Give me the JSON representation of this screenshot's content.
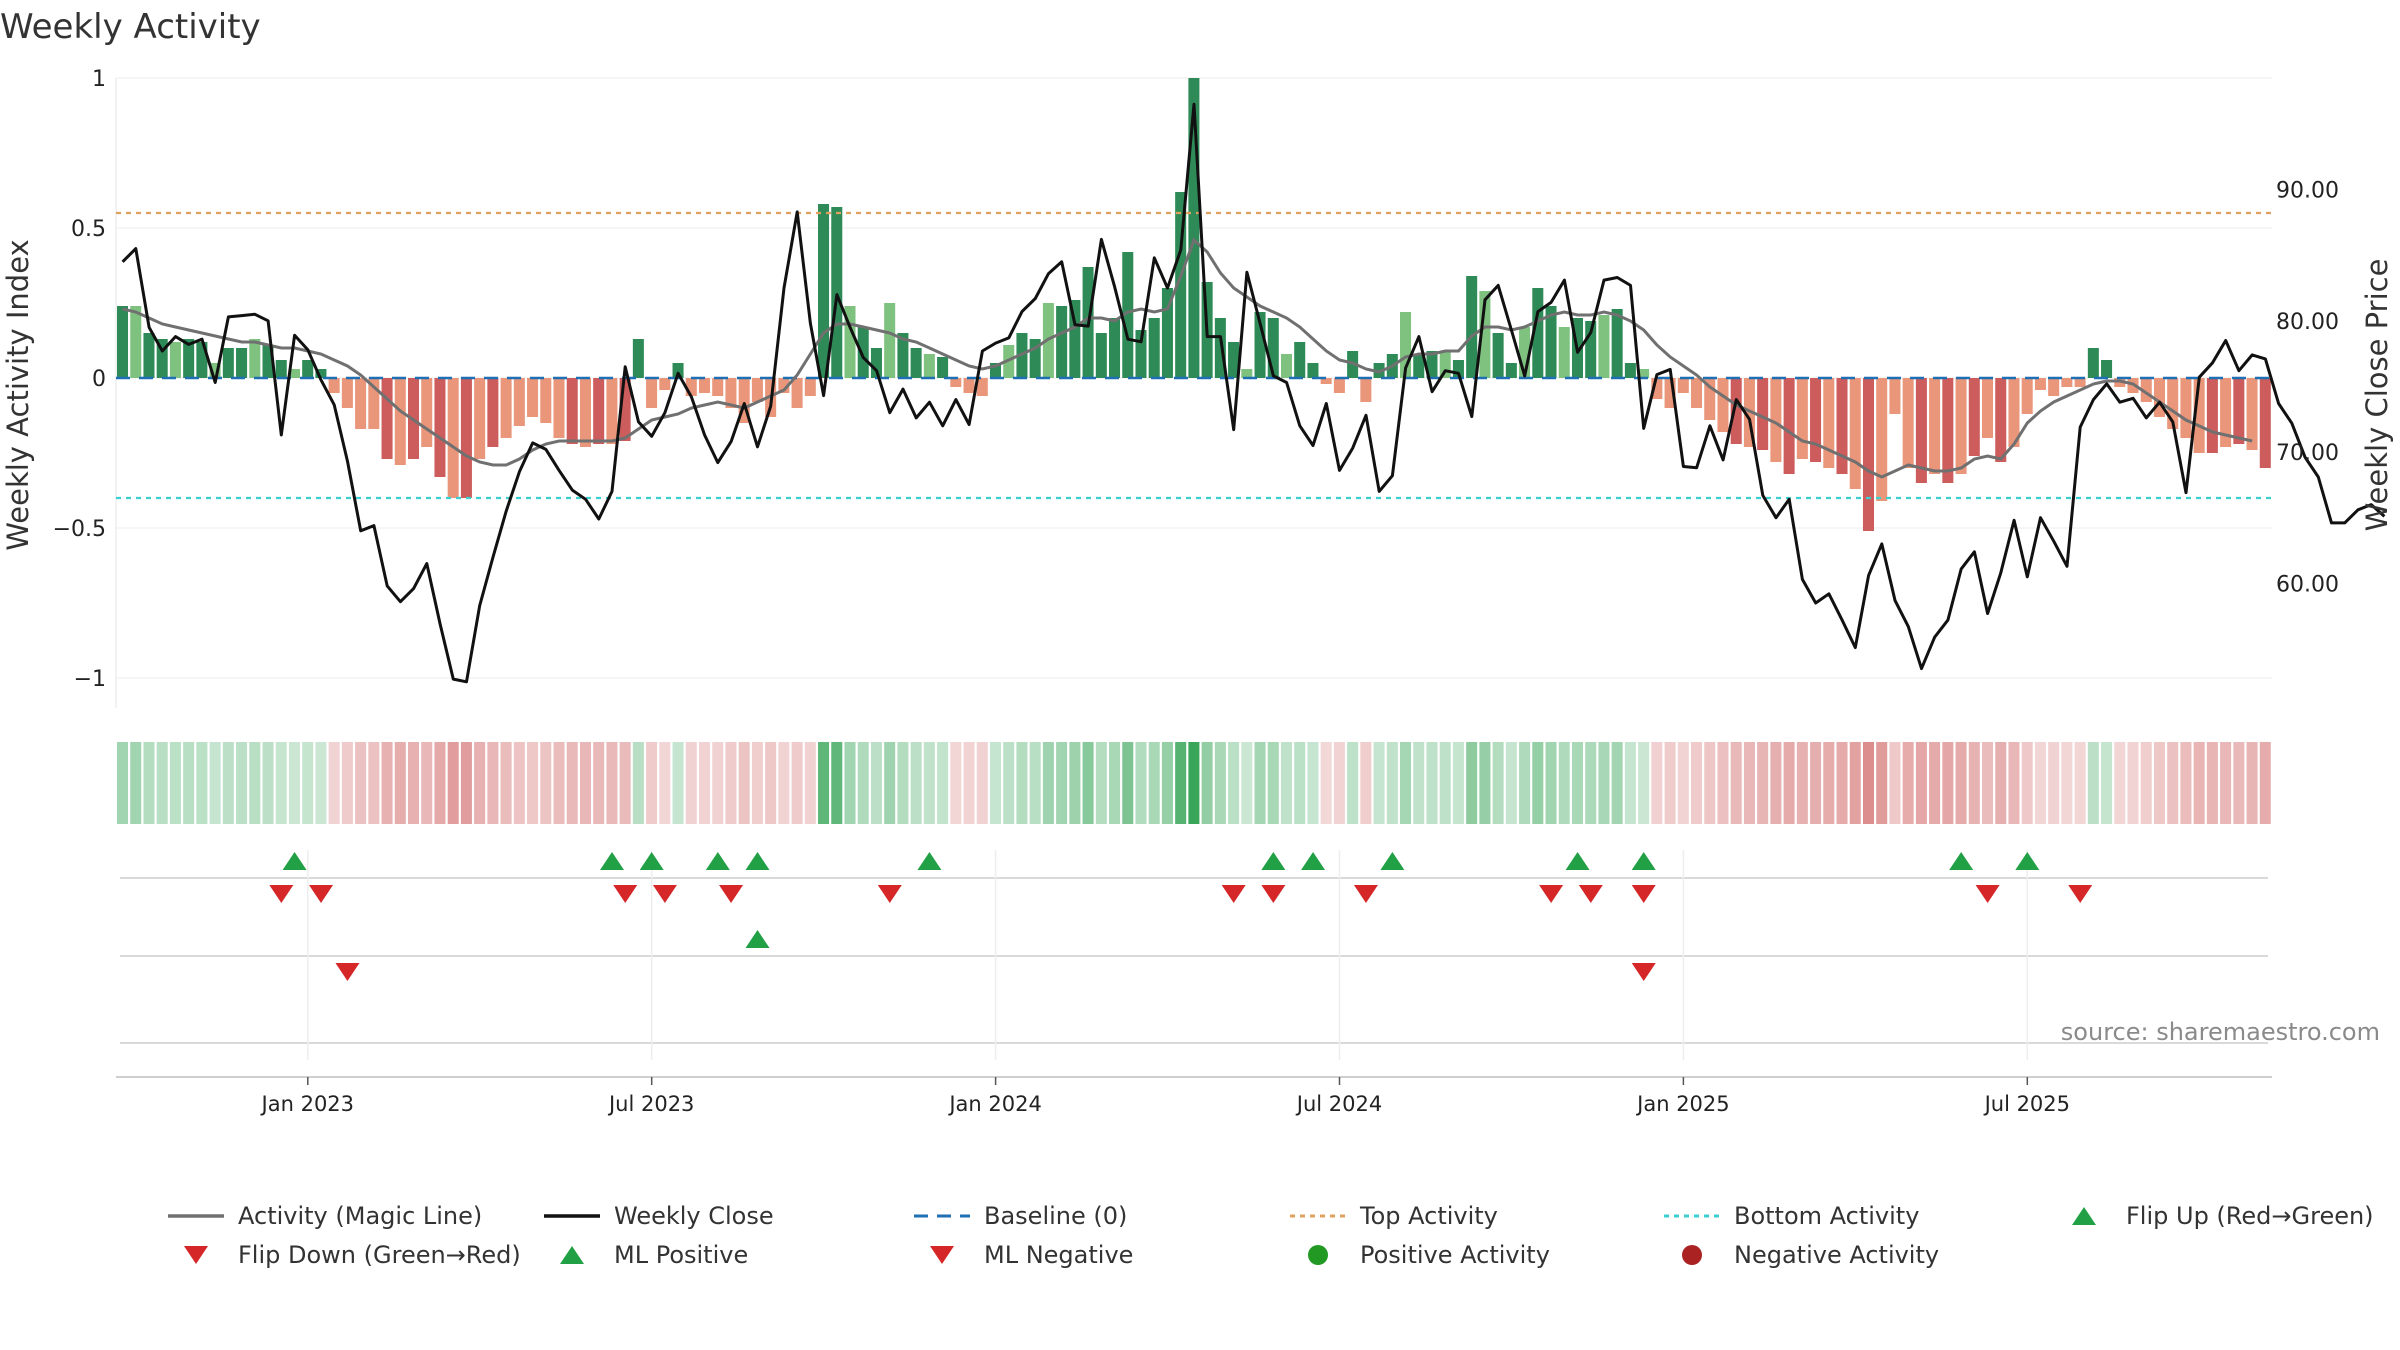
{
  "chart_data": {
    "type": "bar",
    "title": "Weekly Activity",
    "ylabel": "Weekly Activity Index",
    "y2label": "Weekly Close Price",
    "ylim": [
      -1.1,
      1.0
    ],
    "y2lim": [
      50.5,
      98.5
    ],
    "yticks": [
      "1",
      "0.5",
      "0",
      "−0.5",
      "−1"
    ],
    "yticks_values": [
      1,
      0.5,
      0,
      -0.5,
      -1
    ],
    "y2ticks": [
      "90.00",
      "80.00",
      "70.00",
      "60.00"
    ],
    "y2ticks_values": [
      90,
      80,
      70,
      60
    ],
    "xticks": [
      "Jan 2023",
      "Jul 2023",
      "Jan 2024",
      "Jul 2024",
      "Jan 2025",
      "Jul 2025"
    ],
    "xticks_week": [
      14,
      40,
      66,
      92,
      118,
      144
    ],
    "top_activity": 0.55,
    "bottom_activity": -0.4,
    "baseline": 0,
    "source": "source: sharemaestro.com",
    "activity": [
      0.24,
      0.24,
      0.15,
      0.13,
      0.12,
      0.13,
      0.12,
      0.05,
      0.1,
      0.1,
      0.13,
      0.11,
      0.06,
      0.03,
      0.06,
      0.03,
      -0.05,
      -0.1,
      -0.17,
      -0.17,
      -0.27,
      -0.29,
      -0.27,
      -0.23,
      -0.33,
      -0.4,
      -0.4,
      -0.27,
      -0.23,
      -0.2,
      -0.16,
      -0.13,
      -0.15,
      -0.2,
      -0.22,
      -0.23,
      -0.22,
      -0.22,
      -0.21,
      0.13,
      -0.1,
      -0.04,
      0.05,
      -0.06,
      -0.05,
      -0.06,
      -0.1,
      -0.15,
      -0.08,
      -0.13,
      -0.05,
      -0.1,
      -0.06,
      0.58,
      0.57,
      0.24,
      0.17,
      0.1,
      0.25,
      0.15,
      0.1,
      0.08,
      0.07,
      -0.03,
      -0.05,
      -0.06,
      0.05,
      0.11,
      0.15,
      0.13,
      0.25,
      0.24,
      0.26,
      0.37,
      0.15,
      0.2,
      0.42,
      0.16,
      0.2,
      0.3,
      0.62,
      1.0,
      0.32,
      0.2,
      0.12,
      0.03,
      0.22,
      0.2,
      0.08,
      0.12,
      0.05,
      -0.02,
      -0.05,
      0.09,
      -0.08,
      0.05,
      0.08,
      0.22,
      0.08,
      0.09,
      0.09,
      0.06,
      0.34,
      0.29,
      0.15,
      0.05,
      0.17,
      0.3,
      0.24,
      0.17,
      0.2,
      0.19,
      0.21,
      0.23,
      0.05,
      0.03,
      -0.07,
      -0.1,
      -0.05,
      -0.1,
      -0.14,
      -0.18,
      -0.22,
      -0.23,
      -0.24,
      -0.28,
      -0.32,
      -0.27,
      -0.28,
      -0.3,
      -0.32,
      -0.37,
      -0.51,
      -0.41,
      -0.12,
      -0.3,
      -0.35,
      -0.32,
      -0.35,
      -0.32,
      -0.26,
      -0.2,
      -0.28,
      -0.23,
      -0.12,
      -0.04,
      -0.06,
      -0.03,
      -0.03,
      0.1,
      0.06,
      -0.03,
      -0.05,
      -0.08,
      -0.13,
      -0.17,
      -0.2,
      -0.25,
      -0.25,
      -0.23,
      -0.22,
      -0.24,
      -0.3
    ],
    "magic_line": [
      0.23,
      0.22,
      0.2,
      0.18,
      0.17,
      0.16,
      0.15,
      0.14,
      0.13,
      0.12,
      0.12,
      0.11,
      0.1,
      0.1,
      0.09,
      0.08,
      0.06,
      0.04,
      0.01,
      -0.03,
      -0.07,
      -0.11,
      -0.14,
      -0.17,
      -0.2,
      -0.23,
      -0.26,
      -0.28,
      -0.29,
      -0.29,
      -0.27,
      -0.24,
      -0.22,
      -0.21,
      -0.21,
      -0.21,
      -0.21,
      -0.21,
      -0.2,
      -0.17,
      -0.14,
      -0.13,
      -0.12,
      -0.1,
      -0.09,
      -0.08,
      -0.09,
      -0.1,
      -0.08,
      -0.06,
      -0.04,
      0.01,
      0.08,
      0.15,
      0.18,
      0.18,
      0.17,
      0.16,
      0.15,
      0.13,
      0.12,
      0.1,
      0.08,
      0.06,
      0.04,
      0.03,
      0.04,
      0.06,
      0.08,
      0.1,
      0.13,
      0.15,
      0.17,
      0.2,
      0.2,
      0.19,
      0.22,
      0.23,
      0.22,
      0.23,
      0.34,
      0.46,
      0.42,
      0.35,
      0.3,
      0.27,
      0.24,
      0.22,
      0.2,
      0.17,
      0.13,
      0.09,
      0.06,
      0.05,
      0.03,
      0.02,
      0.04,
      0.07,
      0.08,
      0.08,
      0.09,
      0.09,
      0.14,
      0.17,
      0.17,
      0.16,
      0.17,
      0.19,
      0.21,
      0.22,
      0.21,
      0.21,
      0.22,
      0.21,
      0.19,
      0.16,
      0.11,
      0.07,
      0.04,
      0.01,
      -0.03,
      -0.06,
      -0.09,
      -0.11,
      -0.13,
      -0.15,
      -0.18,
      -0.21,
      -0.22,
      -0.24,
      -0.26,
      -0.28,
      -0.31,
      -0.33,
      -0.31,
      -0.29,
      -0.3,
      -0.31,
      -0.31,
      -0.3,
      -0.27,
      -0.26,
      -0.27,
      -0.22,
      -0.15,
      -0.11,
      -0.08,
      -0.06,
      -0.04,
      -0.02,
      -0.01,
      -0.01,
      -0.02,
      -0.05,
      -0.08,
      -0.11,
      -0.14,
      -0.16,
      -0.18,
      -0.19,
      -0.2,
      -0.21
    ],
    "weekly_close": [
      84.5,
      85.5,
      79.5,
      77.7,
      78.8,
      78.2,
      78.6,
      75.3,
      80.3,
      80.4,
      80.5,
      80.0,
      71.3,
      78.9,
      77.8,
      75.5,
      73.6,
      69.3,
      64.0,
      64.4,
      59.8,
      58.6,
      59.6,
      61.5,
      56.9,
      52.7,
      52.5,
      58.3,
      62.0,
      65.5,
      68.5,
      70.7,
      70.2,
      68.6,
      67.1,
      66.4,
      64.9,
      67.0,
      76.5,
      72.3,
      71.2,
      73.0,
      76.0,
      74.2,
      71.3,
      69.2,
      70.8,
      73.7,
      70.4,
      73.5,
      82.5,
      88.3,
      79.8,
      74.3,
      82.0,
      79.5,
      77.2,
      76.2,
      73.0,
      74.8,
      72.6,
      73.8,
      72.0,
      74.0,
      72.1,
      77.7,
      78.3,
      78.7,
      80.7,
      81.7,
      83.6,
      84.5,
      79.7,
      79.6,
      86.2,
      82.6,
      78.6,
      78.4,
      84.8,
      82.5,
      85.4,
      96.5,
      78.8,
      78.8,
      71.7,
      83.7,
      79.8,
      75.8,
      75.3,
      72.0,
      70.5,
      73.7,
      68.6,
      70.3,
      72.8,
      67.0,
      68.2,
      76.4,
      78.8,
      74.6,
      76.2,
      76.0,
      72.7,
      81.6,
      82.7,
      79.3,
      75.8,
      80.7,
      81.4,
      83.1,
      77.6,
      79.1,
      83.1,
      83.3,
      82.7,
      71.8,
      75.9,
      76.3,
      68.9,
      68.8,
      72.0,
      69.4,
      74.0,
      72.5,
      66.7,
      65.0,
      66.4,
      60.3,
      58.5,
      59.2,
      57.2,
      55.1,
      60.6,
      63.0,
      58.7,
      56.7,
      53.5,
      55.9,
      57.2,
      61.1,
      62.4,
      57.7,
      60.8,
      64.8,
      60.5,
      65.0,
      63.2,
      61.3,
      71.9,
      74.0,
      75.2,
      73.8,
      74.1,
      72.6,
      73.8,
      72.3,
      66.9,
      75.7,
      76.8,
      78.5,
      76.2,
      77.4,
      77.1,
      73.7,
      72.2,
      69.6,
      68.1,
      64.6,
      64.6,
      65.6,
      66.0,
      65.1
    ],
    "signals": {
      "flip_up": [
        13,
        37,
        40,
        45,
        48,
        61,
        87,
        90,
        96,
        110,
        115,
        139,
        144
      ],
      "flip_down": [
        12,
        15,
        38,
        41,
        46,
        58,
        84,
        87,
        94,
        108,
        111,
        115,
        141,
        148
      ],
      "ml_positive": [
        48
      ],
      "ml_negative": [
        17,
        115
      ]
    },
    "legend": [
      {
        "label": "Activity (Magic Line)",
        "kind": "line",
        "color": "#707070"
      },
      {
        "label": "Weekly Close",
        "kind": "line",
        "color": "#111111"
      },
      {
        "label": "Baseline (0)",
        "kind": "dashed",
        "color": "#1f6fb4"
      },
      {
        "label": "Top Activity",
        "kind": "dotted",
        "color": "#e0a060"
      },
      {
        "label": "Bottom Activity",
        "kind": "dotted",
        "color": "#3ccfd0"
      },
      {
        "label": "Flip Up (Red→Green)",
        "kind": "triangle-up",
        "color": "#22a045"
      },
      {
        "label": "Flip Down (Green→Red)",
        "kind": "triangle-down",
        "color": "#d62728"
      },
      {
        "label": "ML Positive",
        "kind": "triangle-up",
        "color": "#22a045"
      },
      {
        "label": "ML Negative",
        "kind": "triangle-down",
        "color": "#d62728"
      },
      {
        "label": "Positive Activity",
        "kind": "circle",
        "color": "#229922"
      },
      {
        "label": "Negative Activity",
        "kind": "circle",
        "color": "#aa2222"
      }
    ]
  },
  "colors": {
    "pos_strong": "#2e8b57",
    "pos_light": "#7fc27f",
    "neg_strong": "#cd5c5c",
    "neg_light": "#e9967a",
    "flip_up": "#22a045",
    "flip_down": "#d62728"
  }
}
